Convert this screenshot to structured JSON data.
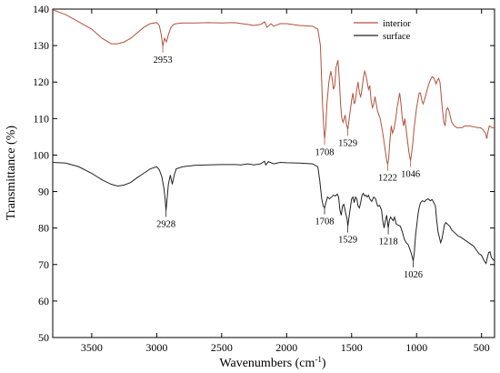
{
  "chart_data": {
    "type": "line",
    "xlabel": "Wavenumbers (cm",
    "xlabel_sup": "-1",
    "xlabel_close": ")",
    "ylabel": "Transmittance (%)",
    "xlim": [
      3800,
      400
    ],
    "ylim": [
      50,
      140
    ],
    "x_reversed": true,
    "x_ticks": [
      3500,
      3000,
      2500,
      2000,
      1500,
      1000,
      500
    ],
    "y_ticks": [
      50,
      60,
      70,
      80,
      90,
      100,
      110,
      120,
      130,
      140
    ],
    "grid": false,
    "legend_position": "top-right",
    "series": [
      {
        "name": "interior",
        "color": "#b3523c",
        "points": [
          [
            3800,
            139.8
          ],
          [
            3700,
            138.5
          ],
          [
            3600,
            136.5
          ],
          [
            3500,
            134.5
          ],
          [
            3420,
            132
          ],
          [
            3350,
            130.5
          ],
          [
            3300,
            130.5
          ],
          [
            3250,
            131
          ],
          [
            3200,
            132
          ],
          [
            3150,
            133.5
          ],
          [
            3100,
            135
          ],
          [
            3050,
            136
          ],
          [
            3000,
            136.3
          ],
          [
            2980,
            135.5
          ],
          [
            2965,
            133
          ],
          [
            2953,
            129.8
          ],
          [
            2940,
            132
          ],
          [
            2925,
            131
          ],
          [
            2910,
            133
          ],
          [
            2890,
            135
          ],
          [
            2870,
            135.8
          ],
          [
            2850,
            136
          ],
          [
            2800,
            136.2
          ],
          [
            2700,
            136.2
          ],
          [
            2600,
            136.3
          ],
          [
            2500,
            136.2
          ],
          [
            2400,
            136.3
          ],
          [
            2300,
            135.8
          ],
          [
            2250,
            135.5
          ],
          [
            2200,
            135.8
          ],
          [
            2170,
            136.5
          ],
          [
            2150,
            135
          ],
          [
            2120,
            136
          ],
          [
            2100,
            135.3
          ],
          [
            2050,
            136
          ],
          [
            2000,
            136
          ],
          [
            1900,
            135.5
          ],
          [
            1800,
            135.3
          ],
          [
            1760,
            134.5
          ],
          [
            1740,
            130
          ],
          [
            1725,
            115
          ],
          [
            1715,
            108
          ],
          [
            1708,
            104.5
          ],
          [
            1700,
            107
          ],
          [
            1690,
            114
          ],
          [
            1675,
            120
          ],
          [
            1660,
            123
          ],
          [
            1650,
            121
          ],
          [
            1640,
            118
          ],
          [
            1630,
            119
          ],
          [
            1620,
            124
          ],
          [
            1605,
            126
          ],
          [
            1595,
            121
          ],
          [
            1585,
            114
          ],
          [
            1575,
            110
          ],
          [
            1565,
            109
          ],
          [
            1550,
            111
          ],
          [
            1540,
            108.5
          ],
          [
            1529,
            107
          ],
          [
            1515,
            111
          ],
          [
            1500,
            115
          ],
          [
            1490,
            117
          ],
          [
            1480,
            114
          ],
          [
            1470,
            115
          ],
          [
            1460,
            118
          ],
          [
            1450,
            120
          ],
          [
            1440,
            117
          ],
          [
            1430,
            116
          ],
          [
            1420,
            118
          ],
          [
            1410,
            121
          ],
          [
            1400,
            123
          ],
          [
            1390,
            122
          ],
          [
            1380,
            120
          ],
          [
            1370,
            118
          ],
          [
            1360,
            119
          ],
          [
            1350,
            115
          ],
          [
            1340,
            113
          ],
          [
            1330,
            114
          ],
          [
            1320,
            116
          ],
          [
            1300,
            112
          ],
          [
            1280,
            110
          ],
          [
            1260,
            106
          ],
          [
            1240,
            101
          ],
          [
            1230,
            98.5
          ],
          [
            1222,
            97.5
          ],
          [
            1215,
            99
          ],
          [
            1205,
            104
          ],
          [
            1195,
            108
          ],
          [
            1185,
            106
          ],
          [
            1175,
            107
          ],
          [
            1160,
            110
          ],
          [
            1150,
            113
          ],
          [
            1140,
            115
          ],
          [
            1130,
            117
          ],
          [
            1120,
            114
          ],
          [
            1110,
            110
          ],
          [
            1100,
            108
          ],
          [
            1090,
            110
          ],
          [
            1080,
            107
          ],
          [
            1070,
            104
          ],
          [
            1060,
            101
          ],
          [
            1050,
            99
          ],
          [
            1046,
            98.5
          ],
          [
            1040,
            100
          ],
          [
            1030,
            103
          ],
          [
            1020,
            107
          ],
          [
            1010,
            110
          ],
          [
            1000,
            113
          ],
          [
            990,
            115
          ],
          [
            980,
            117
          ],
          [
            970,
            117
          ],
          [
            960,
            115
          ],
          [
            950,
            114
          ],
          [
            940,
            115
          ],
          [
            925,
            117
          ],
          [
            910,
            119
          ],
          [
            895,
            120.5
          ],
          [
            880,
            121.5
          ],
          [
            865,
            121
          ],
          [
            850,
            119.5
          ],
          [
            840,
            120.5
          ],
          [
            830,
            121
          ],
          [
            820,
            120
          ],
          [
            810,
            116
          ],
          [
            800,
            112
          ],
          [
            790,
            109
          ],
          [
            780,
            108
          ],
          [
            770,
            112.5
          ],
          [
            760,
            113
          ],
          [
            750,
            112
          ],
          [
            730,
            109
          ],
          [
            710,
            108
          ],
          [
            690,
            107.5
          ],
          [
            670,
            107.5
          ],
          [
            650,
            107.5
          ],
          [
            630,
            108
          ],
          [
            610,
            108
          ],
          [
            590,
            108
          ],
          [
            570,
            107.8
          ],
          [
            550,
            107.7
          ],
          [
            530,
            107.5
          ],
          [
            510,
            107.5
          ],
          [
            490,
            107
          ],
          [
            470,
            106
          ],
          [
            460,
            104.5
          ],
          [
            450,
            106.5
          ],
          [
            440,
            108
          ],
          [
            420,
            107.5
          ],
          [
            400,
            107.5
          ]
        ]
      },
      {
        "name": "surface",
        "color": "#222222",
        "points": [
          [
            3800,
            98
          ],
          [
            3700,
            97.8
          ],
          [
            3600,
            96.8
          ],
          [
            3500,
            95
          ],
          [
            3420,
            93.2
          ],
          [
            3350,
            92
          ],
          [
            3300,
            91.5
          ],
          [
            3250,
            91.8
          ],
          [
            3200,
            92.5
          ],
          [
            3150,
            93.8
          ],
          [
            3100,
            95
          ],
          [
            3050,
            96.2
          ],
          [
            3000,
            96.8
          ],
          [
            2980,
            96
          ],
          [
            2960,
            94
          ],
          [
            2945,
            91
          ],
          [
            2935,
            88
          ],
          [
            2928,
            84.8
          ],
          [
            2920,
            88
          ],
          [
            2910,
            92
          ],
          [
            2895,
            94.5
          ],
          [
            2880,
            92
          ],
          [
            2865,
            94.5
          ],
          [
            2850,
            96.2
          ],
          [
            2800,
            96.8
          ],
          [
            2700,
            97.2
          ],
          [
            2600,
            97.3
          ],
          [
            2500,
            97.4
          ],
          [
            2400,
            97.4
          ],
          [
            2350,
            97.3
          ],
          [
            2300,
            97.6
          ],
          [
            2250,
            97.3
          ],
          [
            2200,
            97.6
          ],
          [
            2170,
            98.3
          ],
          [
            2160,
            97.3
          ],
          [
            2140,
            98.2
          ],
          [
            2100,
            97.6
          ],
          [
            2050,
            98
          ],
          [
            2000,
            97.9
          ],
          [
            1900,
            97.8
          ],
          [
            1800,
            97.6
          ],
          [
            1760,
            96.8
          ],
          [
            1745,
            93
          ],
          [
            1730,
            88
          ],
          [
            1718,
            86
          ],
          [
            1708,
            85.5
          ],
          [
            1698,
            87
          ],
          [
            1685,
            88.5
          ],
          [
            1670,
            88
          ],
          [
            1655,
            88.5
          ],
          [
            1640,
            89
          ],
          [
            1625,
            88.8
          ],
          [
            1610,
            89.3
          ],
          [
            1600,
            88.5
          ],
          [
            1590,
            85
          ],
          [
            1580,
            83.5
          ],
          [
            1570,
            86
          ],
          [
            1560,
            86.5
          ],
          [
            1545,
            84
          ],
          [
            1535,
            82.5
          ],
          [
            1529,
            80.5
          ],
          [
            1520,
            83
          ],
          [
            1510,
            85.5
          ],
          [
            1500,
            88
          ],
          [
            1490,
            88.5
          ],
          [
            1480,
            87
          ],
          [
            1470,
            88.5
          ],
          [
            1460,
            88
          ],
          [
            1450,
            86
          ],
          [
            1440,
            85.5
          ],
          [
            1430,
            87
          ],
          [
            1420,
            89
          ],
          [
            1410,
            89.5
          ],
          [
            1400,
            88.8
          ],
          [
            1390,
            89
          ],
          [
            1380,
            88.5
          ],
          [
            1370,
            89
          ],
          [
            1360,
            88
          ],
          [
            1345,
            87.3
          ],
          [
            1330,
            88.5
          ],
          [
            1315,
            88
          ],
          [
            1300,
            86
          ],
          [
            1285,
            86.2
          ],
          [
            1270,
            85
          ],
          [
            1260,
            82
          ],
          [
            1250,
            80
          ],
          [
            1240,
            82
          ],
          [
            1230,
            83.5
          ],
          [
            1218,
            80
          ],
          [
            1210,
            82
          ],
          [
            1200,
            83
          ],
          [
            1190,
            82.5
          ],
          [
            1180,
            82
          ],
          [
            1170,
            83
          ],
          [
            1155,
            81
          ],
          [
            1140,
            80.8
          ],
          [
            1125,
            80.5
          ],
          [
            1110,
            79
          ],
          [
            1095,
            77
          ],
          [
            1080,
            76
          ],
          [
            1065,
            75.5
          ],
          [
            1050,
            74
          ],
          [
            1040,
            73
          ],
          [
            1026,
            71
          ],
          [
            1018,
            73
          ],
          [
            1008,
            78
          ],
          [
            998,
            81
          ],
          [
            988,
            84
          ],
          [
            978,
            86
          ],
          [
            968,
            87
          ],
          [
            955,
            87.5
          ],
          [
            940,
            87.2
          ],
          [
            925,
            87.8
          ],
          [
            910,
            88
          ],
          [
            895,
            87.5
          ],
          [
            880,
            87.8
          ],
          [
            868,
            87
          ],
          [
            855,
            86
          ],
          [
            845,
            82
          ],
          [
            835,
            79
          ],
          [
            825,
            77.5
          ],
          [
            815,
            76
          ],
          [
            805,
            77
          ],
          [
            795,
            79
          ],
          [
            785,
            81
          ],
          [
            775,
            81.5
          ],
          [
            760,
            81
          ],
          [
            745,
            80.5
          ],
          [
            730,
            79.5
          ],
          [
            715,
            79
          ],
          [
            700,
            78.5
          ],
          [
            680,
            77.8
          ],
          [
            660,
            77.5
          ],
          [
            640,
            77
          ],
          [
            620,
            76.5
          ],
          [
            600,
            76
          ],
          [
            580,
            75.5
          ],
          [
            560,
            75
          ],
          [
            540,
            74
          ],
          [
            520,
            73
          ],
          [
            500,
            72.5
          ],
          [
            480,
            71
          ],
          [
            465,
            70.3
          ],
          [
            455,
            72
          ],
          [
            445,
            73.3
          ],
          [
            435,
            73.5
          ],
          [
            425,
            72
          ],
          [
            415,
            71.5
          ],
          [
            400,
            71
          ]
        ]
      }
    ],
    "annotations": [
      {
        "text": "2953",
        "x": 2953,
        "y": 129.8,
        "series": "interior"
      },
      {
        "text": "1708",
        "x": 1708,
        "y": 104.5,
        "series": "interior"
      },
      {
        "text": "1529",
        "x": 1529,
        "y": 107,
        "series": "interior"
      },
      {
        "text": "1222",
        "x": 1222,
        "y": 97.5,
        "series": "interior"
      },
      {
        "text": "1046",
        "x": 1046,
        "y": 98.5,
        "series": "interior"
      },
      {
        "text": "2928",
        "x": 2928,
        "y": 84.8,
        "series": "surface"
      },
      {
        "text": "1708",
        "x": 1708,
        "y": 85.5,
        "series": "surface"
      },
      {
        "text": "1529",
        "x": 1529,
        "y": 80.5,
        "series": "surface"
      },
      {
        "text": "1218",
        "x": 1218,
        "y": 80,
        "series": "surface"
      },
      {
        "text": "1026",
        "x": 1026,
        "y": 71,
        "series": "surface"
      }
    ]
  }
}
